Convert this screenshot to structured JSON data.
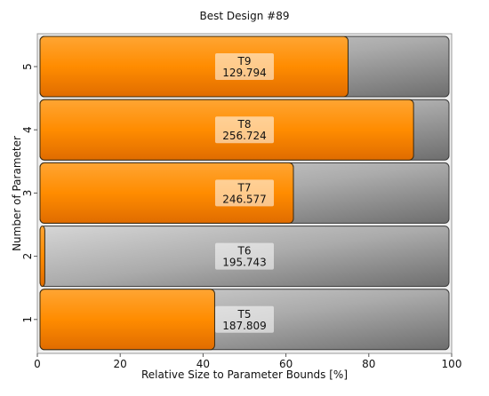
{
  "chart_data": {
    "type": "bar",
    "orientation": "horizontal",
    "title": "Best Design #89",
    "xlabel": "Relative Size to Parameter Bounds [%]",
    "ylabel": "Number of Parameter",
    "xlim": [
      0,
      100
    ],
    "xticks": [
      0,
      20,
      40,
      60,
      80,
      100
    ],
    "categories": [
      "1",
      "2",
      "3",
      "4",
      "5"
    ],
    "bars": [
      {
        "category": "1",
        "name": "T5",
        "value_label": "187.809",
        "relative_percent": 42.8
      },
      {
        "category": "2",
        "name": "T6",
        "value_label": "195.743",
        "relative_percent": 1.8
      },
      {
        "category": "3",
        "name": "T7",
        "value_label": "246.577",
        "relative_percent": 61.8
      },
      {
        "category": "4",
        "name": "T8",
        "value_label": "256.724",
        "relative_percent": 90.8
      },
      {
        "category": "5",
        "name": "T9",
        "value_label": "129.794",
        "relative_percent": 75.0
      }
    ],
    "grid": false,
    "colors": {
      "fill": "#ff8c00",
      "fill_light": "#ffa533",
      "fill_dark": "#e06c00",
      "track_light": "#d0d0d0",
      "track_dark": "#7a7a7a",
      "plot_background": "#f0f0f0"
    }
  }
}
